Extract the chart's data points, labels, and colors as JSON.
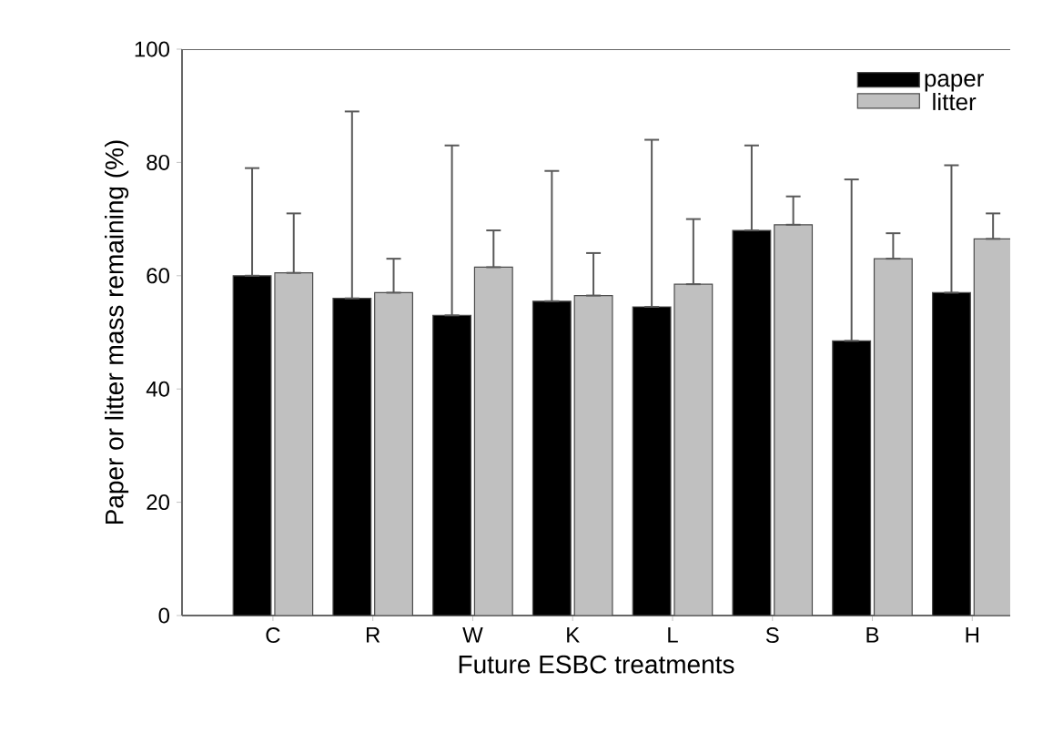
{
  "chart_data": {
    "type": "bar",
    "xlabel": "Future ESBC treatments",
    "ylabel": "Paper or litter mass remaining (%)",
    "categories": [
      "C",
      "R",
      "W",
      "K",
      "L",
      "S",
      "B",
      "H"
    ],
    "series": [
      {
        "name": "paper",
        "color": "#000000",
        "values": [
          60,
          56,
          53,
          55.5,
          54.5,
          68,
          48.5,
          57
        ],
        "errors": [
          [
            60,
            79
          ],
          [
            56,
            89
          ],
          [
            53,
            83
          ],
          [
            55.5,
            78.5
          ],
          [
            54.5,
            84
          ],
          [
            68,
            83
          ],
          [
            48.5,
            77
          ],
          [
            57,
            79.5
          ]
        ]
      },
      {
        "name": "litter",
        "color": "#c0c0c0",
        "values": [
          60.5,
          57,
          61.5,
          56.5,
          58.5,
          69,
          63,
          66.5
        ],
        "errors": [
          [
            60.5,
            71
          ],
          [
            57,
            63
          ],
          [
            61.5,
            68
          ],
          [
            56.5,
            64
          ],
          [
            58.5,
            70
          ],
          [
            69,
            74
          ],
          [
            63,
            67.5
          ],
          [
            66.5,
            71
          ]
        ]
      }
    ],
    "ylim": [
      0,
      100
    ],
    "yticks": [
      0,
      20,
      40,
      60,
      80,
      100
    ],
    "grid": false,
    "legend": "top right"
  }
}
